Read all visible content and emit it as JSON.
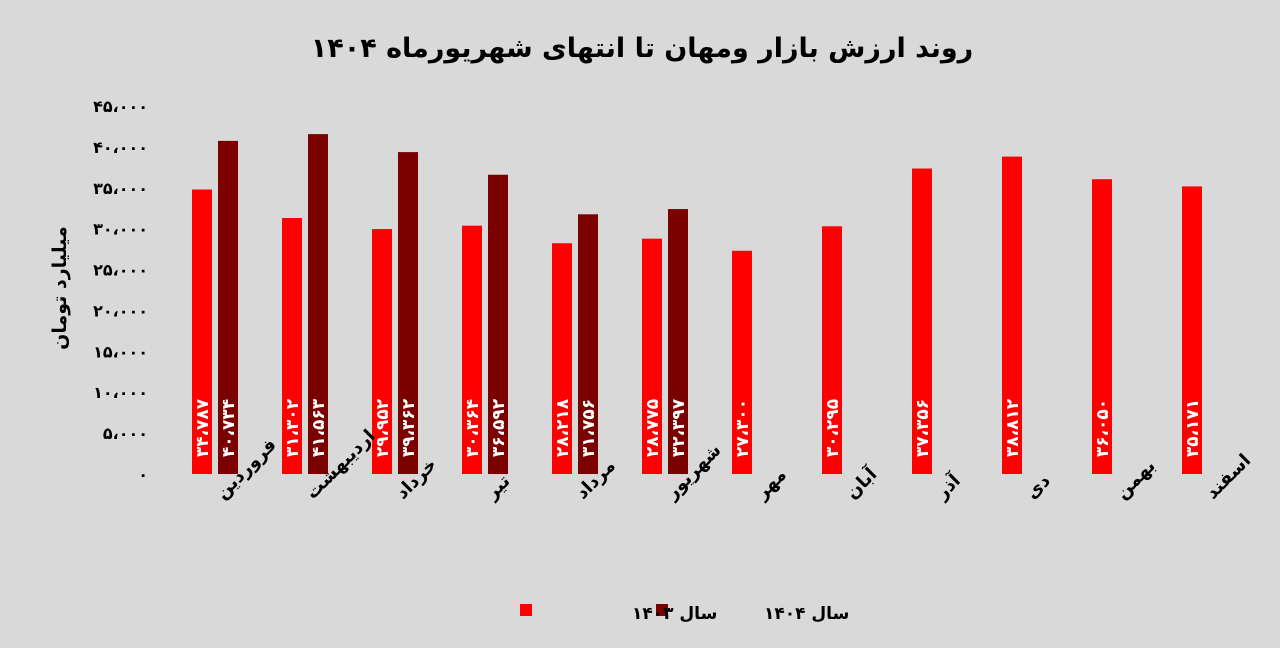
{
  "chart_data": {
    "type": "bar",
    "title": "روند ارزش بازار ومهان تا انتهای شهریورماه ۱۴۰۴",
    "ylabel": "میلیارد تومان",
    "xlabel": "",
    "ylim": [
      0,
      45000
    ],
    "y_ticks": [
      0,
      5000,
      10000,
      15000,
      20000,
      25000,
      30000,
      35000,
      40000,
      45000
    ],
    "y_tick_labels": [
      "۰",
      "۵،۰۰۰",
      "۱۰،۰۰۰",
      "۱۵،۰۰۰",
      "۲۰،۰۰۰",
      "۲۵،۰۰۰",
      "۳۰،۰۰۰",
      "۳۵،۰۰۰",
      "۴۰،۰۰۰",
      "۴۵،۰۰۰"
    ],
    "grid": false,
    "legend_position": "bottom",
    "categories": [
      "فروردین",
      "اردیبهشت",
      "خرداد",
      "تیر",
      "مرداد",
      "شهریور",
      "مهر",
      "آبان",
      "آذر",
      "دی",
      "بهمن",
      "اسفند"
    ],
    "series": [
      {
        "name": "سال ۱۴۰۳",
        "color": "#ff0000",
        "values": [
          34787,
          31302,
          29952,
          30364,
          28218,
          28775,
          27300,
          30295,
          37356,
          38812,
          36050,
          35171
        ],
        "labels": [
          "۳۴،۷۸۷",
          "۳۱،۳۰۲",
          "۲۹،۹۵۲",
          "۳۰،۳۶۴",
          "۲۸،۲۱۸",
          "۲۸،۷۷۵",
          "۲۷،۳۰۰",
          "۳۰،۲۹۵",
          "۳۷،۳۵۶",
          "۳۸،۸۱۲",
          "۳۶،۰۵۰",
          "۳۵،۱۷۱"
        ]
      },
      {
        "name": "سال ۱۴۰۴",
        "color": "#7b0000",
        "values": [
          40734,
          41563,
          39362,
          36592,
          31756,
          32397,
          null,
          null,
          null,
          null,
          null,
          null
        ],
        "labels": [
          "۴۰،۷۳۴",
          "۴۱،۵۶۳",
          "۳۹،۳۶۲",
          "۳۶،۵۹۲",
          "۳۱،۷۵۶",
          "۳۲،۳۹۷",
          null,
          null,
          null,
          null,
          null,
          null
        ]
      }
    ]
  }
}
